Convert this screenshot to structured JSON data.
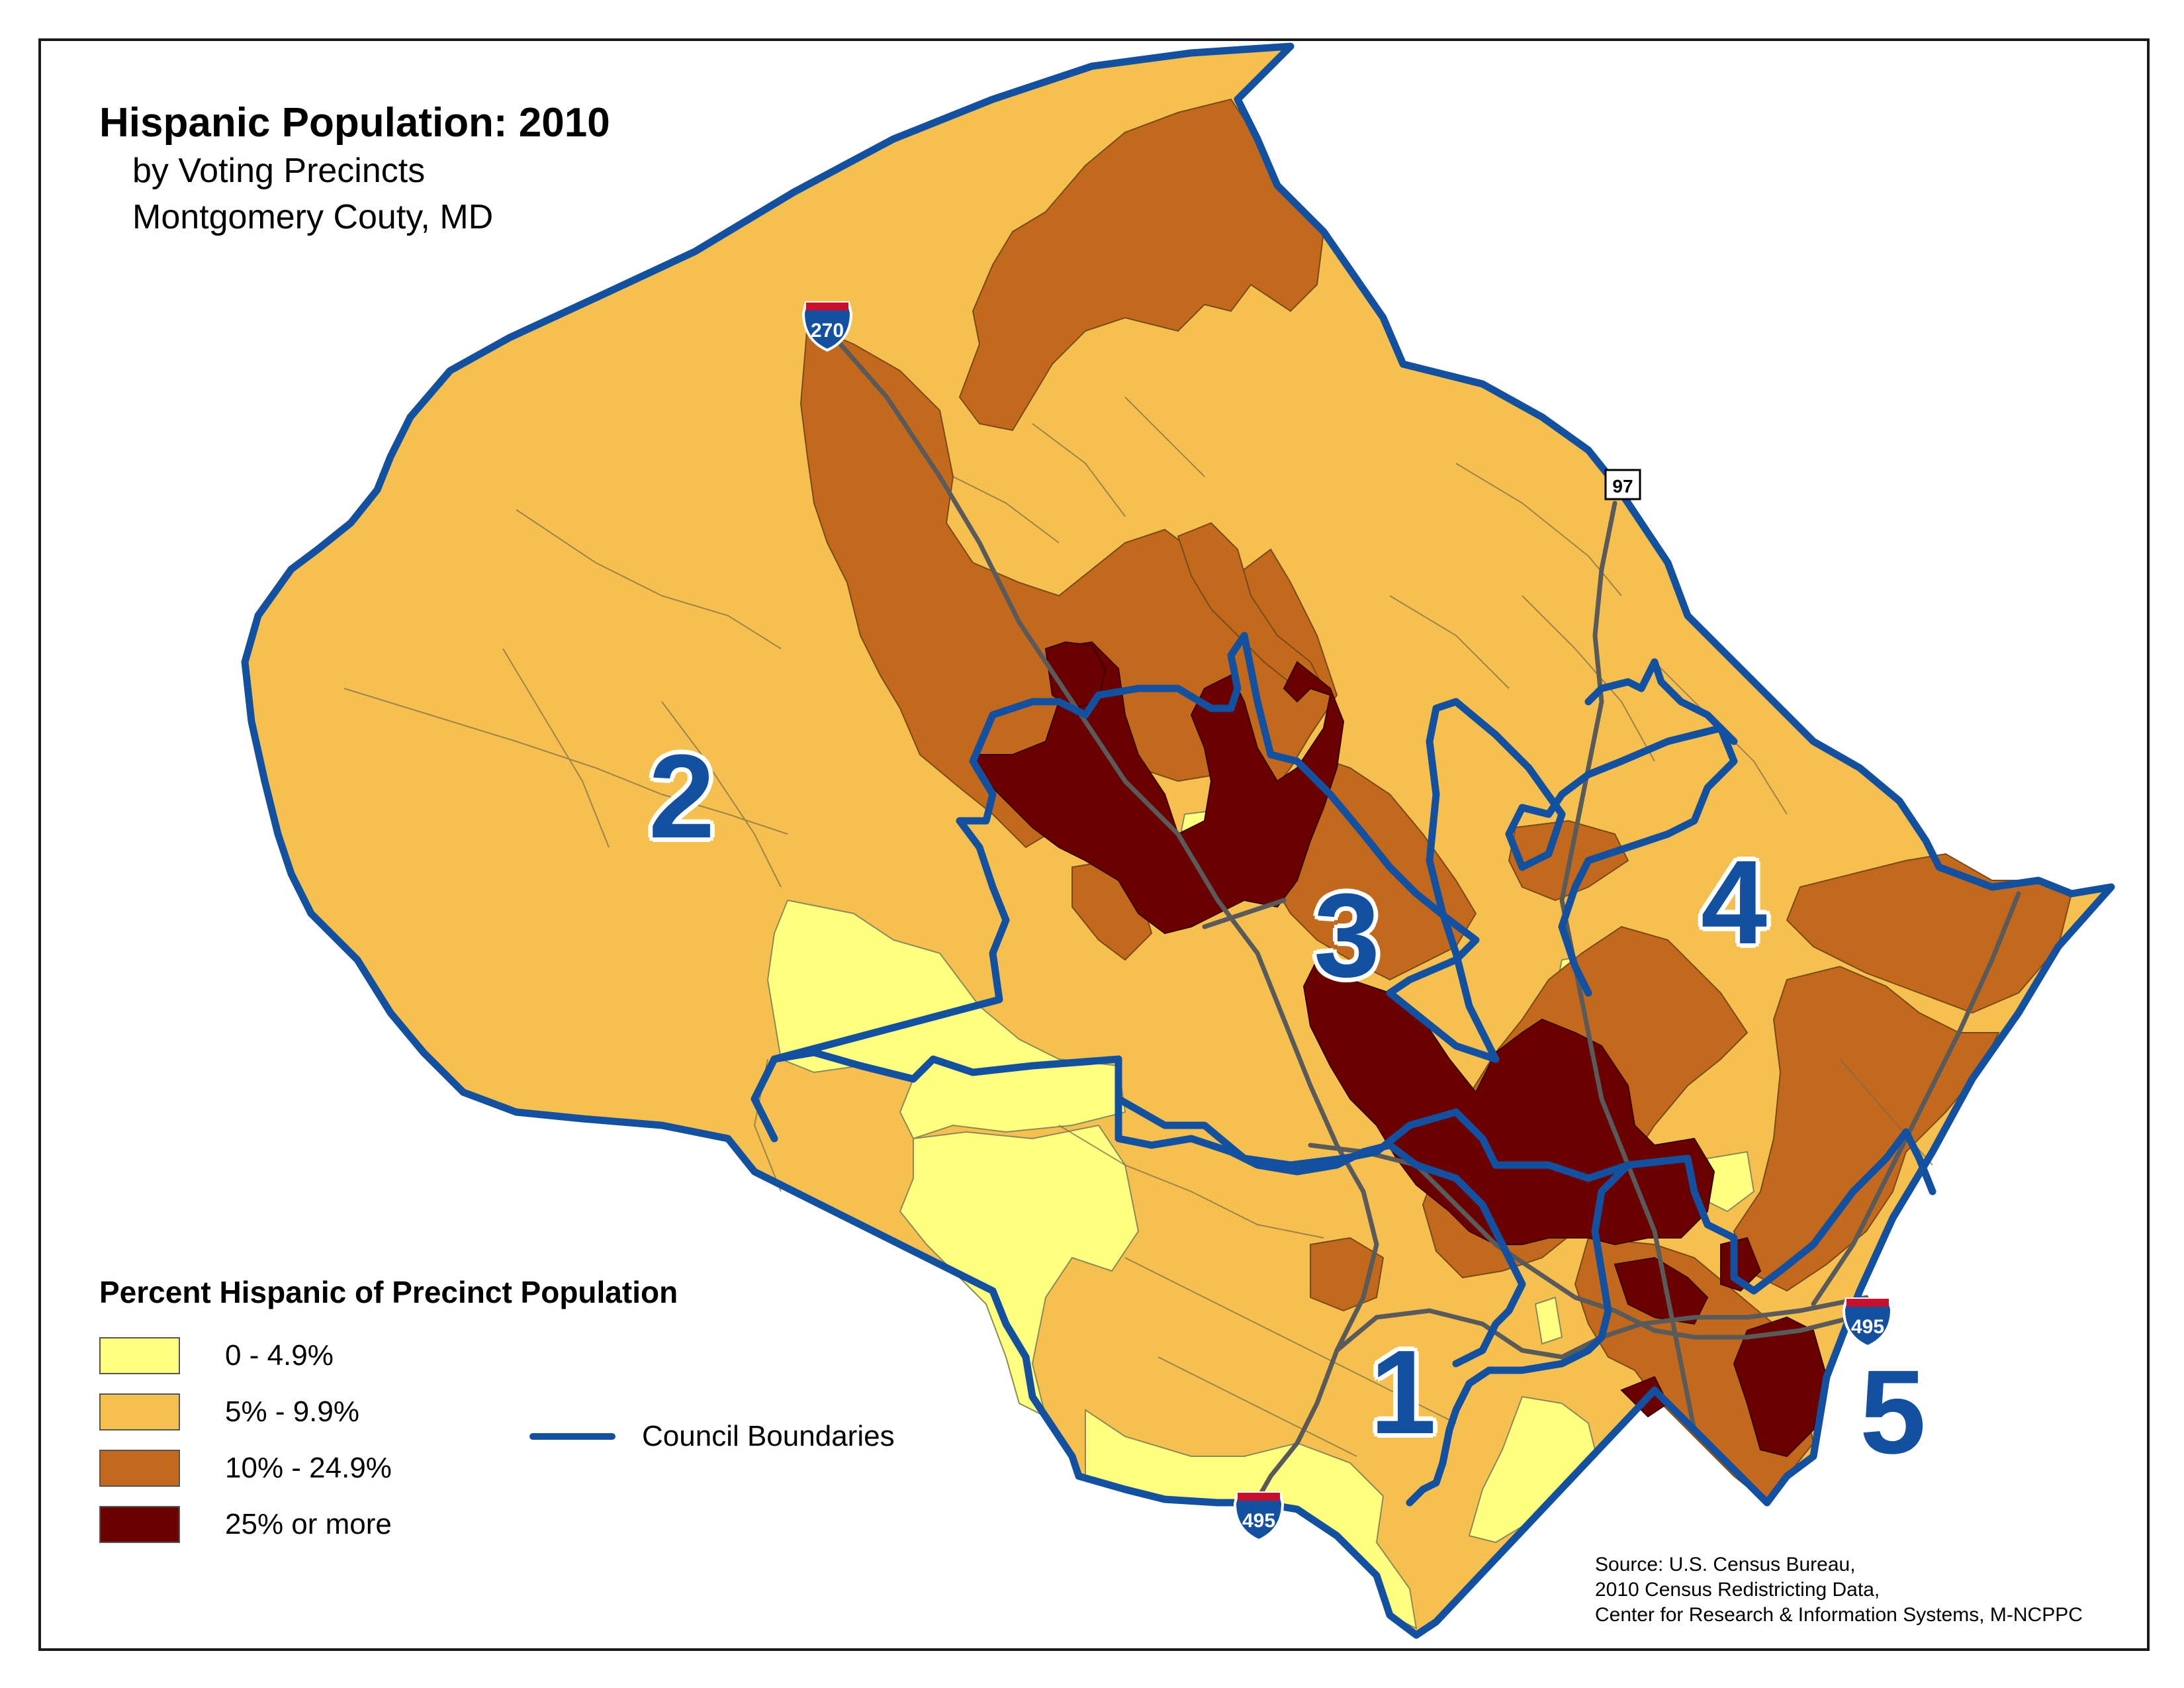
{
  "title": "Hispanic Population: 2010",
  "subtitle_1": "by Voting Precincts",
  "subtitle_2": "Montgomery Couty, MD",
  "legend": {
    "title": "Percent Hispanic of Precinct Population",
    "items": [
      {
        "label": "0 - 4.9%",
        "color": "#ffff80"
      },
      {
        "label": "5% - 9.9%",
        "color": "#f5c04f"
      },
      {
        "label": "10% - 24.9%",
        "color": "#c2691d"
      },
      {
        "label": "25% or more",
        "color": "#6b0000"
      }
    ],
    "boundary_label": "Council Boundaries",
    "boundary_color": "#1450a0"
  },
  "districts": [
    "1",
    "2",
    "3",
    "4",
    "5"
  ],
  "highways": {
    "i270": "270",
    "md97": "97",
    "i495_south": "495",
    "i495_east": "495"
  },
  "source": {
    "line1": "Source: U.S. Census Bureau,",
    "line2": "2010 Census Redistricting Data,",
    "line3": "Center for Research & Information Systems, M-NCPPC"
  },
  "colors": {
    "bin_low": "#ffff80",
    "bin_mid_low": "#f5c04f",
    "bin_mid_high": "#c2691d",
    "bin_high": "#6b0000",
    "boundary": "#1450a0",
    "road": "#5a5a5a"
  }
}
